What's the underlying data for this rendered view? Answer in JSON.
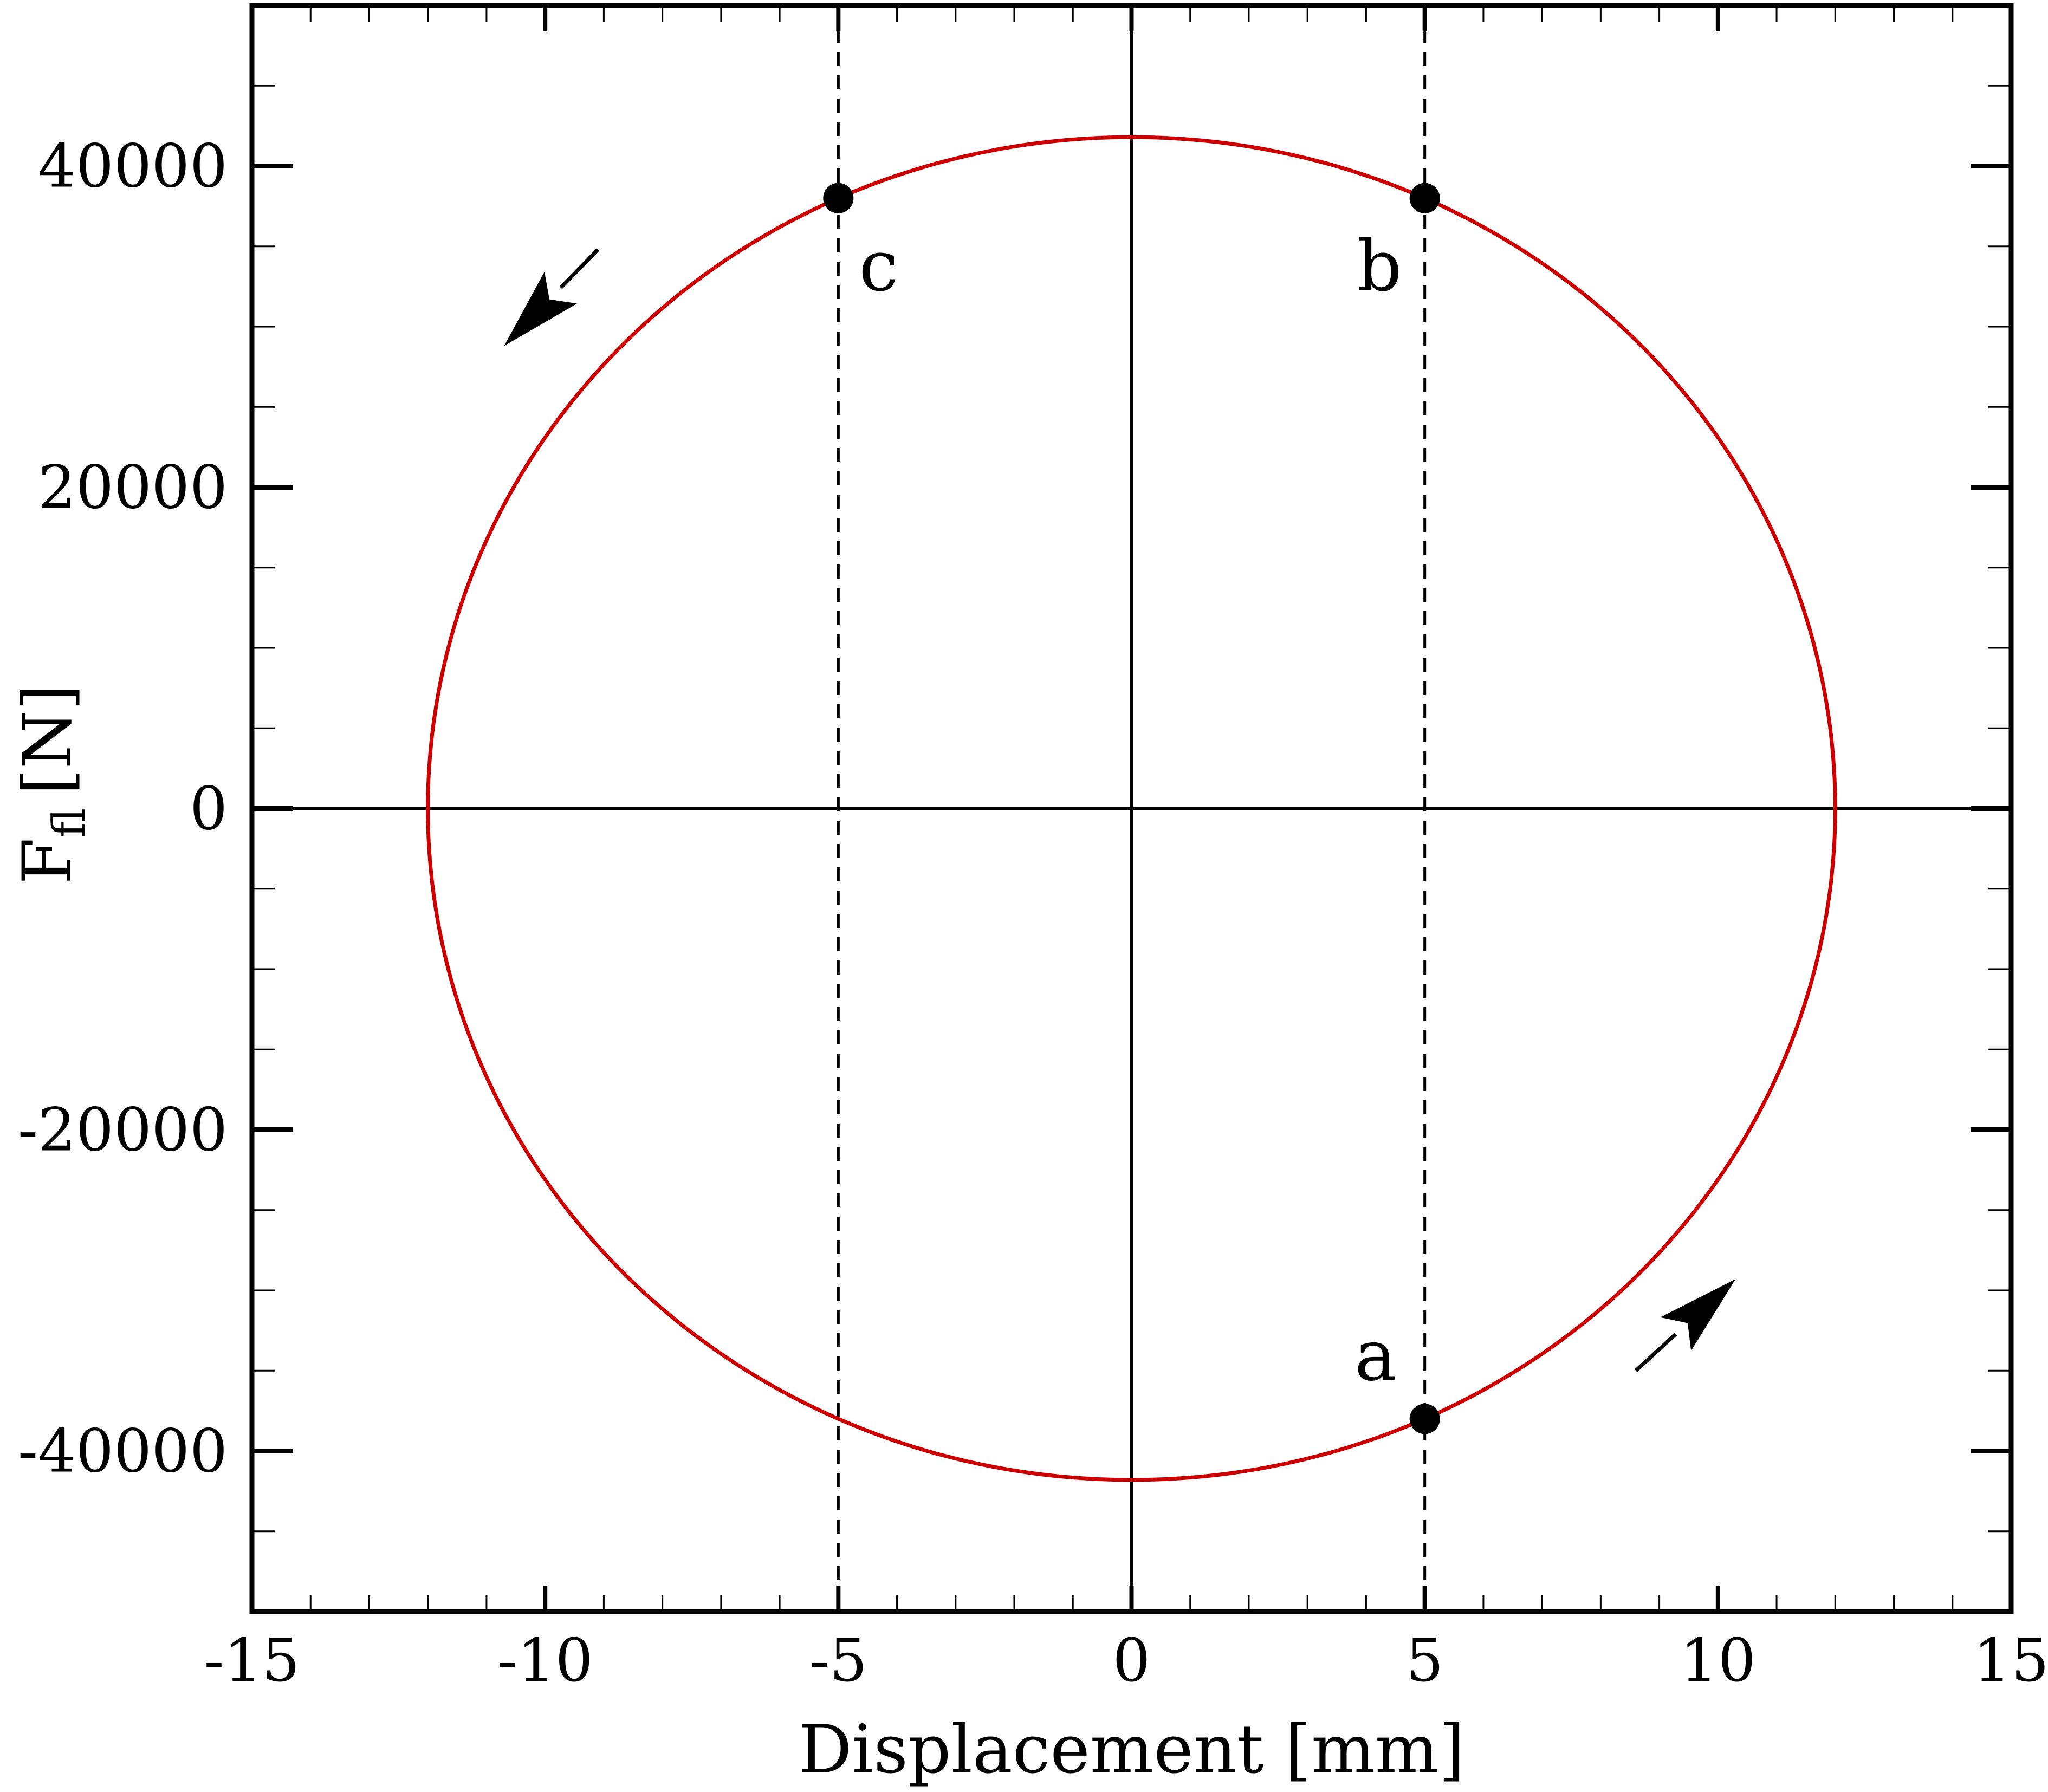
{
  "chart_data": {
    "type": "line",
    "xlabel": "Displacement [mm]",
    "ylabel": {
      "main": "F",
      "subscript": "fl",
      "unit": "[N]"
    },
    "xlim": [
      -15,
      15
    ],
    "ylim": [
      -50000,
      50000
    ],
    "x_ticks": [
      -15,
      -10,
      -5,
      0,
      5,
      10,
      15
    ],
    "x_tick_labels": [
      "-15",
      "-10",
      "-5",
      "0",
      "5",
      "10",
      "15"
    ],
    "x_minor_step": 1,
    "y_ticks": [
      -40000,
      -20000,
      0,
      20000,
      40000
    ],
    "y_tick_labels": [
      "-40000",
      "-20000",
      "0",
      "20000",
      "40000"
    ],
    "y_minor_step": 5000,
    "grid": false,
    "series": [
      {
        "style": "ellipse-loop",
        "center": [
          0,
          0
        ],
        "x_amplitude": 12,
        "y_amplitude": 41800,
        "color": "#cc0000"
      }
    ],
    "reference_lines": [
      {
        "orientation": "horizontal",
        "value": 0,
        "style": "solid"
      },
      {
        "orientation": "vertical",
        "value": 0,
        "style": "solid"
      },
      {
        "orientation": "vertical",
        "value": -5,
        "style": "dashed"
      },
      {
        "orientation": "vertical",
        "value": 5,
        "style": "dashed"
      }
    ],
    "points": [
      {
        "label": "a",
        "x": 5,
        "y": -38000
      },
      {
        "label": "b",
        "x": 5,
        "y": 38000
      },
      {
        "label": "c",
        "x": -5,
        "y": 38000
      }
    ],
    "direction_arrows": [
      {
        "from": [
          8.6,
          -35000
        ],
        "to": [
          10.3,
          -29300
        ],
        "meaning": "counter-clockwise"
      },
      {
        "from": [
          -9.1,
          34800
        ],
        "to": [
          -10.7,
          28800
        ],
        "meaning": "counter-clockwise"
      }
    ]
  },
  "colors": {
    "curve": "#cc0000",
    "axes": "#000000",
    "background": "#ffffff"
  }
}
